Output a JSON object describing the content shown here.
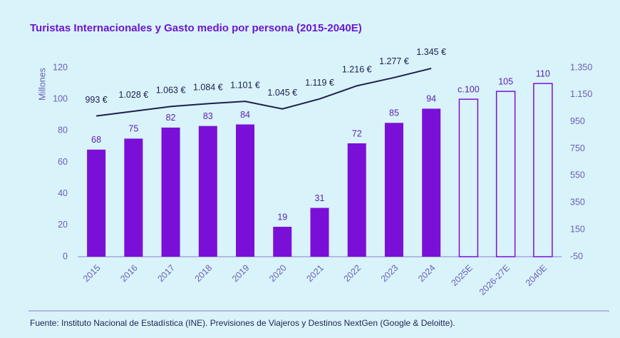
{
  "chart_data": {
    "type": "bar_line",
    "title": "Turistas Internacionales y Gasto medio por persona (2015-2040E)",
    "ylabel": "Millones",
    "source": "Fuente: Instituto Nacional de Estadística (INE). Previsiones de Viajeros y Destinos NextGen (Google & Deloitte).",
    "categories": [
      "2015",
      "2016",
      "2017",
      "2018",
      "2019",
      "2020",
      "2021",
      "2022",
      "2023",
      "2024",
      "2025E",
      "2026-27E",
      "2040E"
    ],
    "series": [
      {
        "name": "Turistas internacionales",
        "type": "bar",
        "color": "#7a10d8",
        "values": [
          68,
          75,
          82,
          83,
          84,
          19,
          31,
          72,
          85,
          94,
          100,
          105,
          110
        ],
        "value_labels": [
          "68",
          "75",
          "82",
          "83",
          "84",
          "19",
          "31",
          "72",
          "85",
          "94",
          "c.100",
          "105",
          "110"
        ],
        "bar_styles": [
          "solid",
          "solid",
          "solid",
          "solid",
          "solid",
          "solid",
          "solid",
          "solid",
          "solid",
          "solid",
          "outline",
          "outline",
          "outline"
        ]
      },
      {
        "name": "Gasto medio por persona",
        "type": "line",
        "axis": "y2",
        "color": "#1c1f4e",
        "values": [
          993,
          1028,
          1063,
          1084,
          1101,
          1045,
          1119,
          1216,
          1277,
          1345,
          null,
          null,
          null
        ],
        "value_labels": [
          "993 €",
          "1.028 €",
          "1.063 €",
          "1.084 €",
          "1.101 €",
          "1.045 €",
          "1.119 €",
          "1.216 €",
          "1.277 €",
          "1.345 €",
          null,
          null,
          null
        ]
      }
    ],
    "ylim": [
      0,
      120
    ],
    "yticks": [
      0,
      20,
      40,
      60,
      80,
      100,
      120
    ],
    "y2lim": [
      -50,
      1350
    ],
    "y2ticks": [
      -50,
      150,
      350,
      550,
      750,
      950,
      {
        "value": 1150,
        "label": "1.150"
      },
      {
        "value": 1350,
        "label": "1.350"
      }
    ]
  }
}
